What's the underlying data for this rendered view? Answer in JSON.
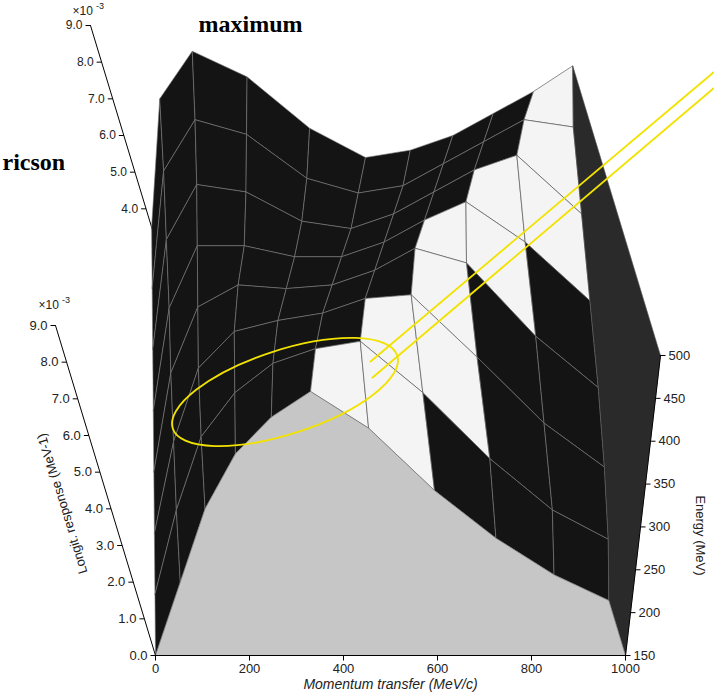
{
  "chart_data": {
    "type": "surface",
    "title": "maximum",
    "annotations": [
      "ricson"
    ],
    "x_label": "Momentum transfer (MeV/c)",
    "y_label": "Energy (MeV)",
    "z_label": "Longit. response (MeV-1)",
    "z_multiplier": "×10",
    "z_exponent": "-3",
    "x": [
      0,
      100,
      200,
      300,
      400,
      500,
      600,
      700,
      800,
      900,
      1000
    ],
    "y": [
      150,
      200,
      250,
      300,
      350,
      400,
      450,
      500
    ],
    "values": [
      [
        0.0,
        2.0,
        4.0,
        5.5,
        6.5,
        7.2,
        6.2,
        4.5,
        3.2,
        2.2,
        1.5
      ],
      [
        0.5,
        2.8,
        4.8,
        6.0,
        6.8,
        7.2,
        7.4,
        6.0,
        4.2,
        2.8,
        2.0
      ],
      [
        1.0,
        3.5,
        5.5,
        6.5,
        6.8,
        7.0,
        7.4,
        7.5,
        5.8,
        4.0,
        2.8
      ],
      [
        1.5,
        4.2,
        6.0,
        6.6,
        6.5,
        6.6,
        7.0,
        7.6,
        7.2,
        5.2,
        3.8
      ],
      [
        2.0,
        4.8,
        6.5,
        6.5,
        6.2,
        6.2,
        6.6,
        7.2,
        7.7,
        6.6,
        5.0
      ],
      [
        2.5,
        5.5,
        7.0,
        6.8,
        6.0,
        5.8,
        6.2,
        6.8,
        7.4,
        7.8,
        6.2
      ],
      [
        3.0,
        6.2,
        7.6,
        7.2,
        6.0,
        5.6,
        5.8,
        6.4,
        7.0,
        7.6,
        7.4
      ],
      [
        3.5,
        7.0,
        8.3,
        7.6,
        6.2,
        5.4,
        5.6,
        6.0,
        6.6,
        7.2,
        7.9
      ]
    ],
    "xlim": [
      0,
      1000
    ],
    "xticks": [
      0,
      200,
      400,
      600,
      800,
      1000
    ],
    "ylim": [
      150,
      500
    ],
    "yticks": [
      150,
      200,
      250,
      300,
      350,
      400,
      450,
      500
    ],
    "zlim": [
      0,
      9
    ],
    "zticks": [
      {
        "value": 0,
        "label": "0.0"
      },
      {
        "value": 1,
        "label": "1.0"
      },
      {
        "value": 2,
        "label": "2.0"
      },
      {
        "value": 3,
        "label": "3.0"
      },
      {
        "value": 4,
        "label": "4.0"
      },
      {
        "value": 5,
        "label": "5.0"
      },
      {
        "value": 6,
        "label": "6.0"
      },
      {
        "value": 7,
        "label": "7.0"
      },
      {
        "value": 8,
        "label": "8.0"
      },
      {
        "value": 9,
        "label": "9.0"
      }
    ],
    "zticks_back": [
      {
        "value": 4,
        "label": "4.0"
      },
      {
        "value": 5,
        "label": "5.0"
      },
      {
        "value": 6,
        "label": "6.0"
      },
      {
        "value": 7,
        "label": "7.0"
      },
      {
        "value": 8,
        "label": "8.0"
      },
      {
        "value": 9,
        "label": "9.0"
      }
    ]
  }
}
